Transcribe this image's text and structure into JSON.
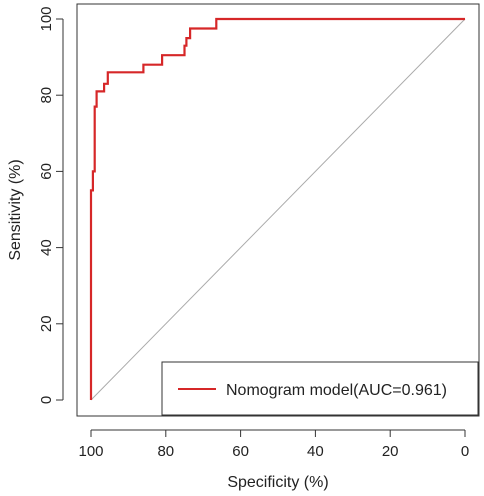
{
  "chart_data": {
    "type": "line",
    "xlabel": "Specificity (%)",
    "ylabel": "Sensitivity (%)",
    "x_reversed": true,
    "xlim": [
      100,
      0
    ],
    "ylim": [
      0,
      100
    ],
    "x_ticks": [
      100,
      80,
      60,
      40,
      20,
      0
    ],
    "y_ticks": [
      0,
      20,
      40,
      60,
      80,
      100
    ],
    "x_tick_labels": [
      "100",
      "80",
      "60",
      "40",
      "20",
      "0"
    ],
    "y_tick_labels": [
      "0",
      "20",
      "40",
      "60",
      "80",
      "100"
    ],
    "grid": false,
    "legend_position": "bottom-right",
    "series": [
      {
        "name": "Nomogram model(AUC=0.961)",
        "color": "#d62728",
        "x": [
          100,
          100,
          99.5,
          99.5,
          99,
          99,
          98.5,
          98.5,
          96.5,
          96.5,
          95.5,
          95.5,
          86,
          86,
          81,
          81,
          75,
          75,
          74.5,
          74.5,
          73.5,
          73.5,
          66.5,
          66.5,
          0
        ],
        "y": [
          0,
          55,
          55,
          60,
          60,
          77,
          77,
          81,
          81,
          83,
          83,
          86,
          86,
          88,
          88,
          90.5,
          90.5,
          93,
          93,
          95,
          95,
          97.5,
          97.5,
          100,
          100
        ]
      },
      {
        "name": "",
        "color": "#aaaaaa",
        "x": [
          100,
          0
        ],
        "y": [
          0,
          100
        ]
      }
    ]
  }
}
